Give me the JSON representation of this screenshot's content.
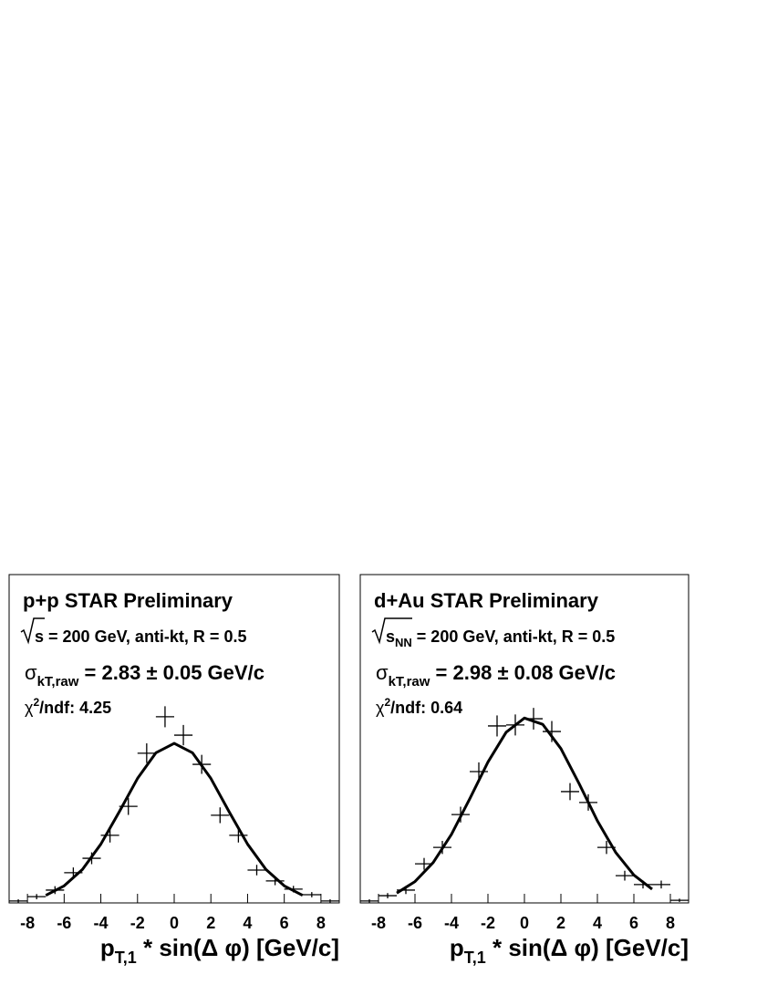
{
  "chart_data": [
    {
      "type": "histogram",
      "title": "p+p  STAR Preliminary",
      "energy": {
        "root": "s",
        "root_sub": "",
        "rest": " = 200 GeV, anti-kt, R = 0.5"
      },
      "sigma_label": {
        "symbol": "σ",
        "sub": "kT,raw",
        "rest": " = 2.83 ± 0.05 GeV/c"
      },
      "chi_label": {
        "symbol": "χ",
        "sup": "2",
        "rest": "/ndf: 4.25"
      },
      "x_label": {
        "main": "p",
        "sub": "T,1",
        "rest": " * sin(Δ φ) [GeV/c]"
      },
      "bins": [
        -9,
        -8,
        -7,
        -6,
        -5,
        -4,
        -3,
        -2,
        -1,
        0,
        1,
        2,
        3,
        4,
        5,
        6,
        7,
        8,
        9
      ],
      "values": [
        0.6,
        1.9,
        3.9,
        9.2,
        13.6,
        20.6,
        29.4,
        45.6,
        56.7,
        51.1,
        42.2,
        26.7,
        20.6,
        10,
        6.7,
        4.2,
        2.5,
        0.6
      ],
      "errors": [
        0.5,
        0.8,
        1.2,
        1.6,
        1.8,
        2.2,
        2.6,
        3,
        3.2,
        3.1,
        2.9,
        2.4,
        2.2,
        1.6,
        1.3,
        1,
        0.8,
        0.5
      ],
      "fit": {
        "x": [
          -7,
          -6,
          -5,
          -4,
          -3,
          -2,
          -1,
          0,
          1,
          2,
          3,
          4,
          5,
          6,
          7
        ],
        "values": [
          2.3,
          5.2,
          10.2,
          17.9,
          27.7,
          37.9,
          45.7,
          48.6,
          45.7,
          37.9,
          27.7,
          17.9,
          10.2,
          5.2,
          2.3
        ]
      },
      "color": "#000000",
      "xlim": [
        -9,
        9
      ],
      "xticks": [
        -8,
        -6,
        -4,
        -2,
        0,
        2,
        4,
        6,
        8
      ],
      "ylim": [
        0,
        100
      ]
    },
    {
      "type": "histogram",
      "title": "d+Au  STAR Preliminary",
      "energy": {
        "root": "s",
        "root_sub": "NN",
        "rest": " = 200 GeV, anti-kt, R = 0.5"
      },
      "sigma_label": {
        "symbol": "σ",
        "sub": "kT,raw",
        "rest": " = 2.98 ± 0.08 GeV/c"
      },
      "chi_label": {
        "symbol": "χ",
        "sup": "2",
        "rest": "/ndf: 0.64"
      },
      "x_label": {
        "main": "p",
        "sub": "T,1",
        "rest": " * sin(Δ φ) [GeV/c]"
      },
      "bins": [
        -9,
        -8,
        -7,
        -6,
        -5,
        -4,
        -3,
        -2,
        -1,
        0,
        1,
        2,
        3,
        4,
        5,
        6,
        7,
        8,
        9
      ],
      "values": [
        0.6,
        2.2,
        3.9,
        11.9,
        16.9,
        26.9,
        40,
        53.9,
        54.2,
        56.1,
        52.2,
        33.9,
        30.6,
        16.9,
        8.3,
        5.6,
        5.6,
        0.8
      ],
      "errors": [
        0.5,
        0.8,
        1.2,
        1.8,
        2,
        2.4,
        2.8,
        3.2,
        3.2,
        3.3,
        3.2,
        2.6,
        2.5,
        2,
        1.5,
        1.2,
        1.2,
        0.5
      ],
      "fit": {
        "x": [
          -7,
          -6,
          -5,
          -4,
          -3,
          -2,
          -1,
          0,
          1,
          2,
          3,
          4,
          5,
          6,
          7
        ],
        "values": [
          3.0,
          6.5,
          12.3,
          20.9,
          31.7,
          42.9,
          52.0,
          56.3,
          54.4,
          47.0,
          36.3,
          25.0,
          15.4,
          8.5,
          4.2
        ]
      },
      "color": "#000000",
      "xlim": [
        -9,
        9
      ],
      "xticks": [
        -8,
        -6,
        -4,
        -2,
        0,
        2,
        4,
        6,
        8
      ],
      "ylim": [
        0,
        100
      ]
    }
  ]
}
